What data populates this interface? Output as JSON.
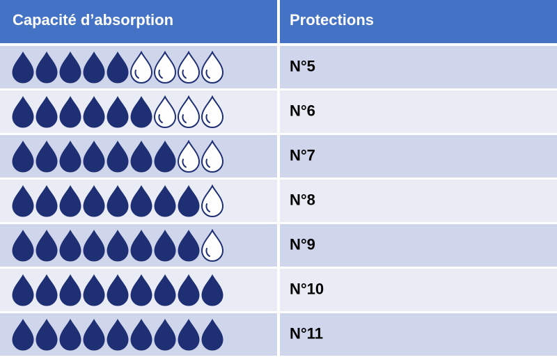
{
  "table": {
    "header": [
      "Capacité d’absorption",
      "Protections"
    ],
    "drops": 9,
    "rows": [
      {
        "filled": 5,
        "label": "N°5"
      },
      {
        "filled": 6,
        "label": "N°6"
      },
      {
        "filled": 7,
        "label": "N°7"
      },
      {
        "filled": 8,
        "label": "N°8"
      },
      {
        "filled": 8,
        "label": "N°9"
      },
      {
        "filled": 9,
        "label": "N°10"
      },
      {
        "filled": 9,
        "label": "N°11"
      }
    ]
  }
}
